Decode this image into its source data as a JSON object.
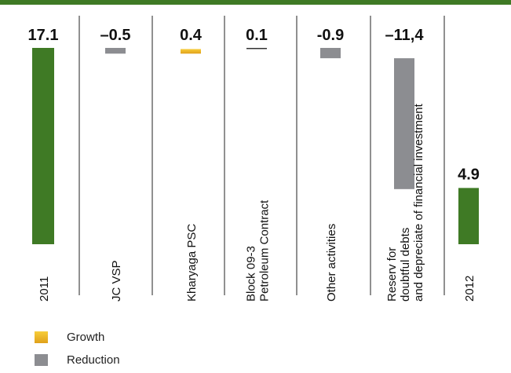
{
  "colors": {
    "total": "#3f7a25",
    "growth_top": "#f7cd3a",
    "growth_bottom": "#e0a01a",
    "reduction": "#8c8d91",
    "top_rule": "#3f7a25",
    "separator": "#222222",
    "text": "#111111"
  },
  "chart_data": {
    "type": "bar",
    "subtype": "waterfall",
    "categories": [
      "2011",
      "JC VSP",
      "Kharyaga PSC",
      [
        "Block 09-3",
        "Petroleum Contract"
      ],
      "Other activities",
      [
        "Reserv for",
        "doubtful debts",
        "and depreciate of financial investment"
      ],
      "2012"
    ],
    "values": [
      17.1,
      -0.5,
      0.4,
      0.1,
      -0.9,
      -11.4,
      4.9
    ],
    "value_labels": [
      "17.1",
      "–0.5",
      "0.4",
      "0.1",
      "-0.9",
      "–11,4",
      "4.9"
    ],
    "kinds": [
      "total",
      "reduction",
      "growth",
      "growth",
      "reduction",
      "reduction",
      "total"
    ],
    "ylim": [
      0,
      17.1
    ]
  },
  "legend": {
    "growth_label": "Growth",
    "reduction_label": "Reduction"
  }
}
